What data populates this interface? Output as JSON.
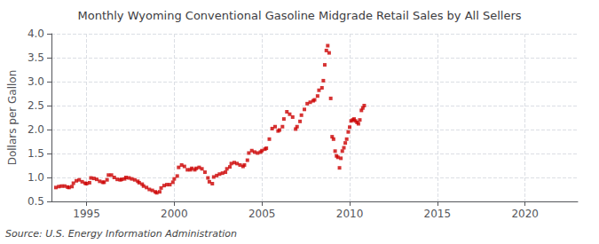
{
  "chart_data": {
    "type": "scatter",
    "title": "Monthly Wyoming Conventional Gasoline Midgrade Retail Sales by All Sellers",
    "ylabel": "Dollars per Gallon",
    "annotation": "Source: U.S. Energy Information Administration",
    "color": "#cc0000",
    "marker": "square",
    "grid": true,
    "xlim": [
      1993.0,
      2023.0
    ],
    "xticks": [
      1995,
      2000,
      2005,
      2010,
      2015,
      2020
    ],
    "ylim": [
      0.5,
      4.0
    ],
    "yticks": [
      0.5,
      {
        "value": 1.0,
        "label": "1.0"
      },
      1.5,
      {
        "value": 2.0,
        "label": "2.0"
      },
      2.5,
      {
        "value": 3.0,
        "label": "3.0"
      },
      3.5,
      {
        "value": 4.0,
        "label": "4.0"
      }
    ],
    "x": [
      1993.25,
      1993.42,
      1993.58,
      1993.75,
      1993.92,
      1994.0,
      1994.17,
      1994.25,
      1994.42,
      1994.58,
      1994.75,
      1994.92,
      1995.0,
      1995.17,
      1995.25,
      1995.42,
      1995.58,
      1995.75,
      1995.92,
      1996.0,
      1996.17,
      1996.25,
      1996.42,
      1996.58,
      1996.75,
      1996.92,
      1997.0,
      1997.17,
      1997.25,
      1997.42,
      1997.58,
      1997.75,
      1997.92,
      1998.0,
      1998.17,
      1998.25,
      1998.42,
      1998.58,
      1998.75,
      1998.92,
      1999.0,
      1999.17,
      1999.25,
      1999.42,
      1999.58,
      1999.75,
      1999.92,
      2000.0,
      2000.17,
      2000.25,
      2000.42,
      2000.58,
      2000.75,
      2000.92,
      2001.0,
      2001.17,
      2001.25,
      2001.42,
      2001.58,
      2001.75,
      2001.92,
      2002.0,
      2002.17,
      2002.25,
      2002.42,
      2002.58,
      2002.75,
      2002.92,
      2003.0,
      2003.17,
      2003.25,
      2003.42,
      2003.58,
      2003.75,
      2003.92,
      2004.0,
      2004.17,
      2004.25,
      2004.42,
      2004.58,
      2004.75,
      2004.92,
      2005.0,
      2005.17,
      2005.25,
      2005.42,
      2005.58,
      2005.75,
      2005.92,
      2006.0,
      2006.17,
      2006.25,
      2006.42,
      2006.58,
      2006.75,
      2006.92,
      2007.0,
      2007.17,
      2007.25,
      2007.42,
      2007.58,
      2007.75,
      2007.92,
      2008.0,
      2008.17,
      2008.25,
      2008.42,
      2008.5,
      2008.58,
      2008.67,
      2008.75,
      2008.83,
      2008.92,
      2009.0,
      2009.08,
      2009.17,
      2009.25,
      2009.33,
      2009.42,
      2009.5,
      2009.58,
      2009.67,
      2009.75,
      2009.83,
      2009.92,
      2010.0,
      2010.08,
      2010.17,
      2010.25,
      2010.33,
      2010.42,
      2010.5,
      2010.58,
      2010.67,
      2010.75,
      2010.83
    ],
    "values": [
      0.79,
      0.81,
      0.82,
      0.82,
      0.8,
      0.79,
      0.81,
      0.88,
      0.93,
      0.95,
      0.91,
      0.88,
      0.87,
      0.89,
      0.99,
      0.98,
      0.96,
      0.92,
      0.9,
      0.9,
      0.95,
      1.05,
      1.05,
      1.0,
      0.96,
      0.95,
      0.96,
      0.97,
      1.0,
      0.99,
      0.97,
      0.95,
      0.92,
      0.89,
      0.86,
      0.82,
      0.79,
      0.75,
      0.73,
      0.7,
      0.68,
      0.7,
      0.78,
      0.83,
      0.85,
      0.85,
      0.9,
      0.97,
      1.03,
      1.21,
      1.26,
      1.23,
      1.16,
      1.16,
      1.19,
      1.16,
      1.19,
      1.21,
      1.18,
      1.11,
      0.99,
      0.91,
      0.87,
      1.01,
      1.04,
      1.07,
      1.09,
      1.11,
      1.18,
      1.22,
      1.29,
      1.31,
      1.29,
      1.26,
      1.23,
      1.26,
      1.36,
      1.51,
      1.56,
      1.53,
      1.51,
      1.53,
      1.56,
      1.59,
      1.61,
      1.8,
      2.02,
      2.06,
      1.97,
      1.99,
      2.06,
      2.22,
      2.37,
      2.32,
      2.26,
      2.01,
      2.06,
      2.17,
      2.3,
      2.42,
      2.54,
      2.57,
      2.6,
      2.62,
      2.7,
      2.82,
      2.87,
      3.02,
      3.35,
      3.65,
      3.75,
      3.6,
      2.65,
      1.85,
      1.8,
      1.55,
      1.45,
      1.42,
      1.2,
      1.4,
      1.55,
      1.62,
      1.72,
      1.8,
      1.95,
      2.05,
      2.18,
      2.2,
      2.22,
      2.18,
      2.15,
      2.12,
      2.2,
      2.4,
      2.45,
      2.5
    ]
  }
}
